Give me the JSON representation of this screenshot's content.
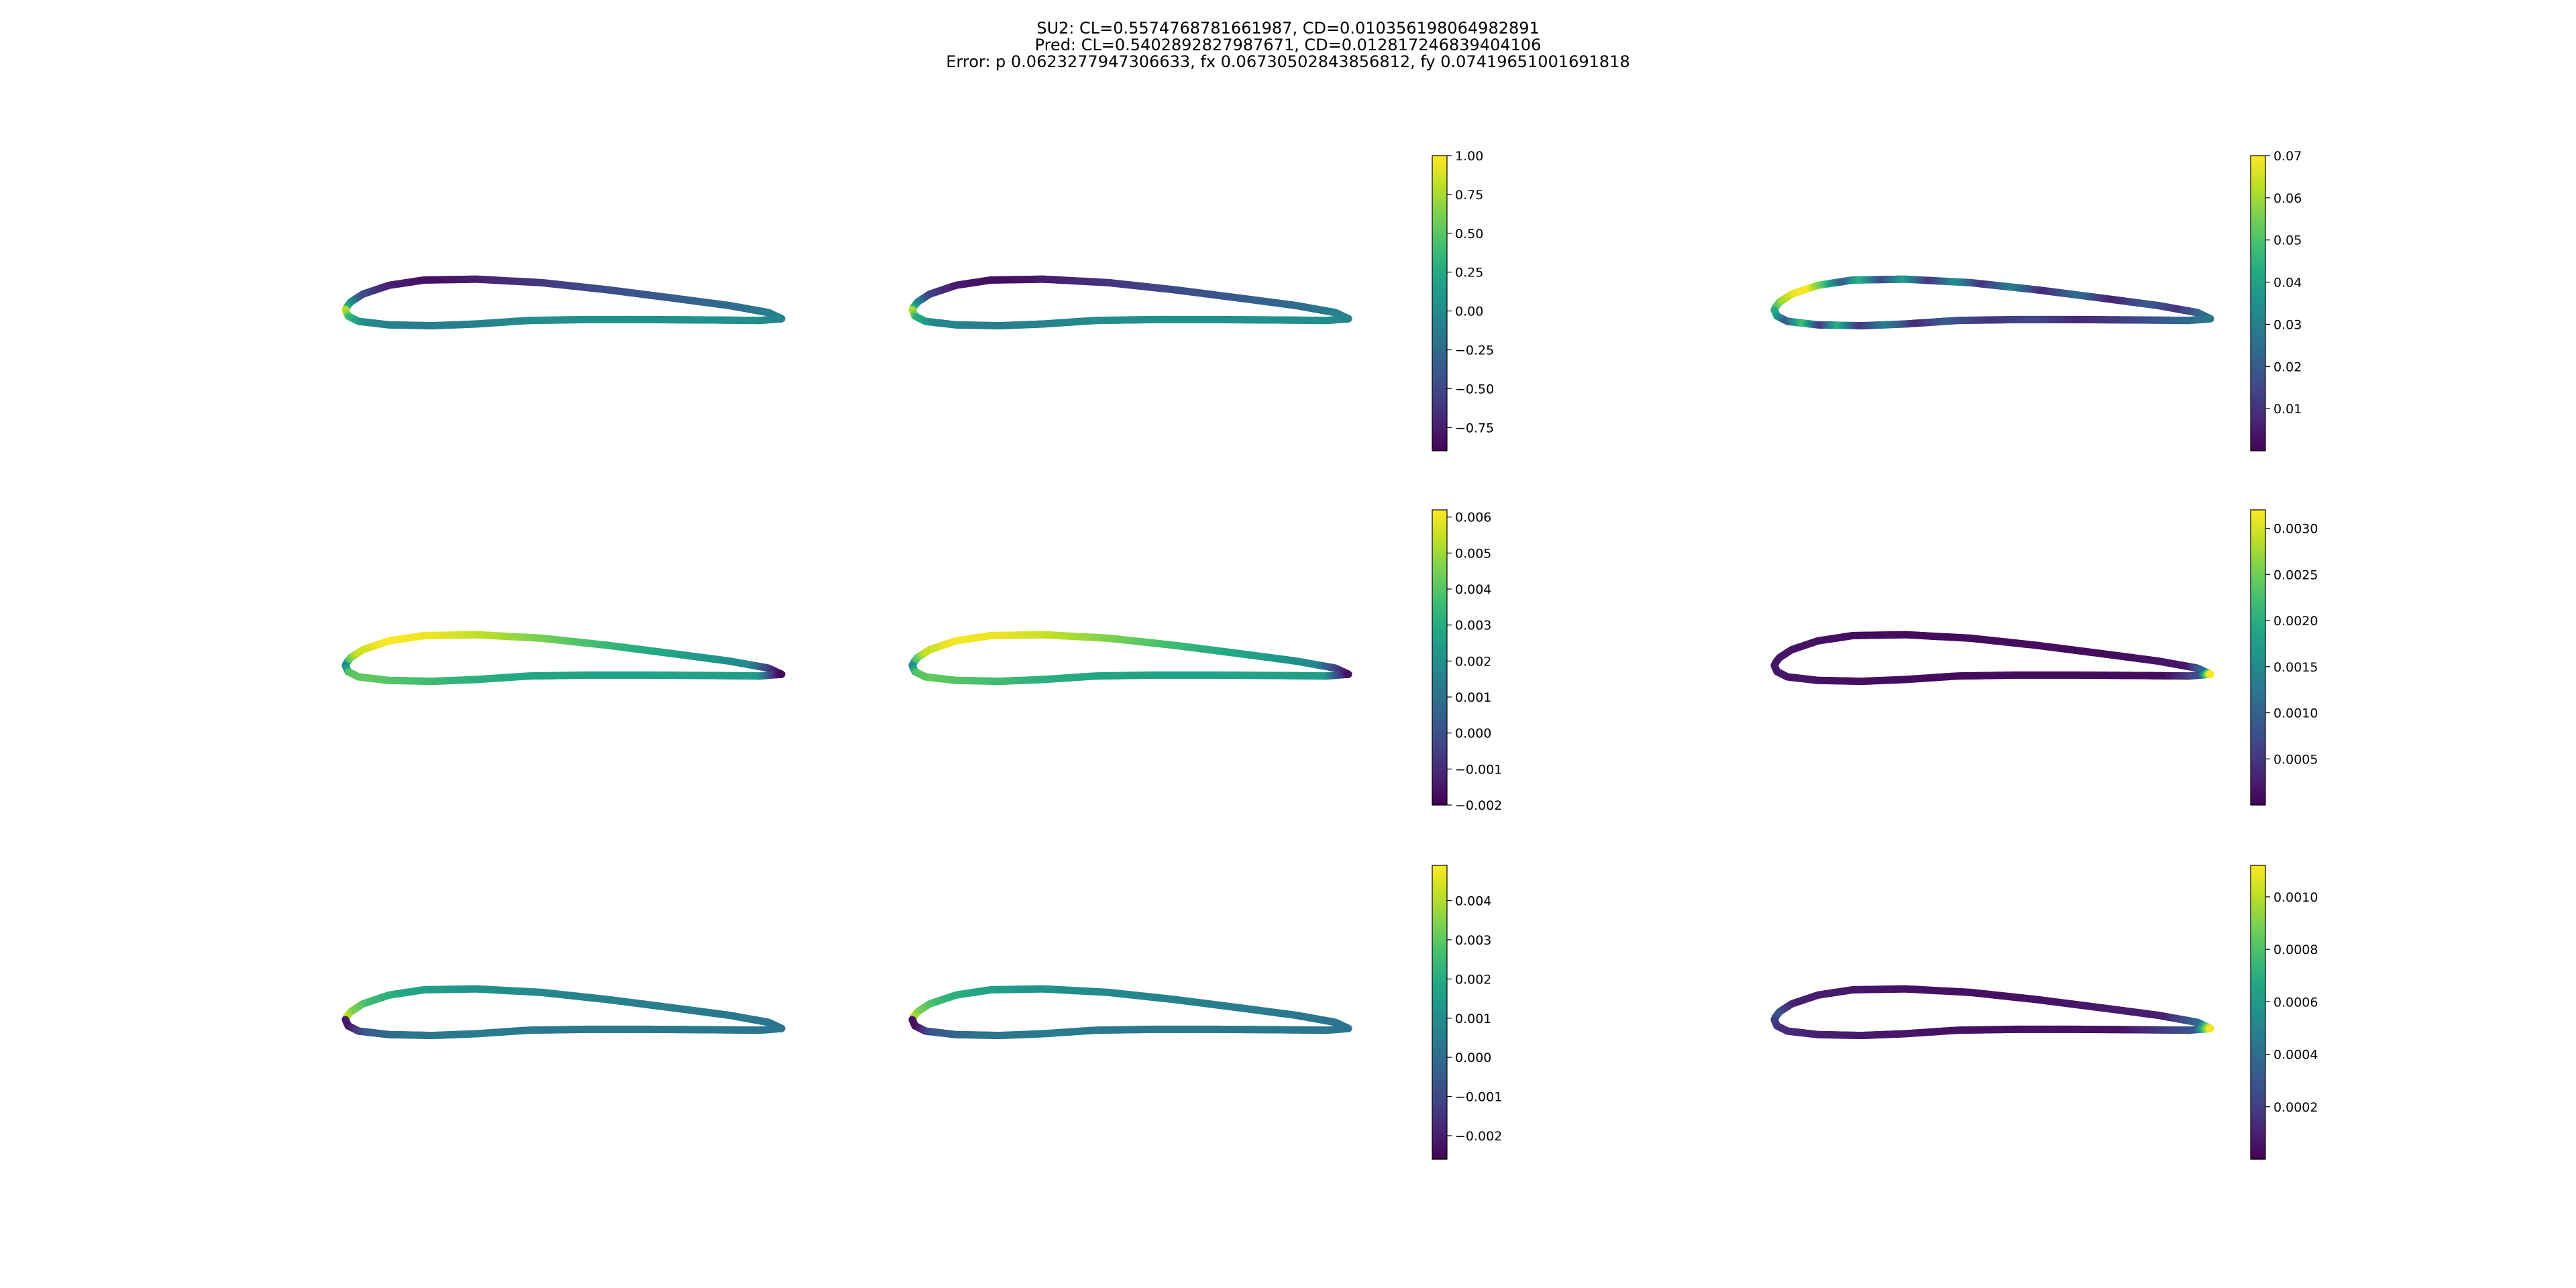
{
  "title": {
    "line1": "SU2: CL=0.5574768781661987, CD=0.010356198064982891",
    "line2": "Pred: CL=0.5402892827987671, CD=0.012817246839404106",
    "line3": "Error: p 0.0623277947306633, fx 0.06730502843856812, fy 0.07419651001691818"
  },
  "chart_data": {
    "type": "heatmap",
    "colormap": "viridis",
    "layout": "3x3 grid of airfoil surface plots; columns: SU2, prediction, absolute error",
    "airfoil_shape": {
      "upper": [
        [
          0.0,
          0.0
        ],
        [
          0.004,
          0.008
        ],
        [
          0.012,
          0.018
        ],
        [
          0.04,
          0.036
        ],
        [
          0.1,
          0.056
        ],
        [
          0.18,
          0.068
        ],
        [
          0.3,
          0.07
        ],
        [
          0.45,
          0.062
        ],
        [
          0.6,
          0.046
        ],
        [
          0.75,
          0.027
        ],
        [
          0.88,
          0.01
        ],
        [
          0.97,
          -0.006
        ],
        [
          1.0,
          -0.02
        ]
      ],
      "lower": [
        [
          0.0,
          0.0
        ],
        [
          0.006,
          -0.014
        ],
        [
          0.03,
          -0.026
        ],
        [
          0.1,
          -0.034
        ],
        [
          0.2,
          -0.036
        ],
        [
          0.3,
          -0.032
        ],
        [
          0.42,
          -0.024
        ],
        [
          0.55,
          -0.022
        ],
        [
          0.7,
          -0.022
        ],
        [
          0.85,
          -0.023
        ],
        [
          0.95,
          -0.024
        ],
        [
          1.0,
          -0.02
        ]
      ]
    },
    "rows": [
      {
        "quantity": "p",
        "shared_colorbar": {
          "range": [
            -0.9,
            1.0
          ],
          "ticks": [
            1.0,
            0.75,
            0.5,
            0.25,
            0.0,
            -0.25,
            -0.5,
            -0.75
          ],
          "tick_labels": [
            "1.00",
            "0.75",
            "0.50",
            "0.25",
            "0.00",
            "−0.25",
            "−0.50",
            "−0.75"
          ]
        },
        "error_colorbar": {
          "range": [
            0.0,
            0.07
          ],
          "ticks": [
            0.07,
            0.06,
            0.05,
            0.04,
            0.03,
            0.02,
            0.01
          ],
          "tick_labels": [
            "0.07",
            "0.06",
            "0.05",
            "0.04",
            "0.03",
            "0.02",
            "0.01"
          ]
        },
        "su2": {
          "upper": [
            [
              0.0,
              0.9
            ],
            [
              0.005,
              0.5
            ],
            [
              0.015,
              0.1
            ],
            [
              0.04,
              -0.45
            ],
            [
              0.1,
              -0.72
            ],
            [
              0.2,
              -0.82
            ],
            [
              0.35,
              -0.7
            ],
            [
              0.55,
              -0.5
            ],
            [
              0.75,
              -0.35
            ],
            [
              0.92,
              -0.2
            ],
            [
              1.0,
              -0.05
            ]
          ],
          "lower": [
            [
              0.0,
              0.9
            ],
            [
              0.01,
              0.4
            ],
            [
              0.05,
              0.0
            ],
            [
              0.15,
              -0.12
            ],
            [
              0.3,
              -0.08
            ],
            [
              0.45,
              0.03
            ],
            [
              0.6,
              0.05
            ],
            [
              0.8,
              0.05
            ],
            [
              0.95,
              0.03
            ],
            [
              1.0,
              -0.05
            ]
          ]
        },
        "pred": {
          "upper": [
            [
              0.0,
              0.85
            ],
            [
              0.005,
              0.45
            ],
            [
              0.015,
              0.05
            ],
            [
              0.04,
              -0.5
            ],
            [
              0.1,
              -0.75
            ],
            [
              0.2,
              -0.84
            ],
            [
              0.35,
              -0.72
            ],
            [
              0.55,
              -0.52
            ],
            [
              0.75,
              -0.36
            ],
            [
              0.92,
              -0.2
            ],
            [
              1.0,
              -0.05
            ]
          ],
          "lower": [
            [
              0.0,
              0.85
            ],
            [
              0.01,
              0.35
            ],
            [
              0.05,
              -0.02
            ],
            [
              0.15,
              -0.1
            ],
            [
              0.3,
              -0.07
            ],
            [
              0.45,
              0.03
            ],
            [
              0.6,
              0.05
            ],
            [
              0.8,
              0.05
            ],
            [
              0.95,
              0.03
            ],
            [
              1.0,
              -0.05
            ]
          ]
        },
        "error": {
          "upper": [
            [
              0.0,
              0.045
            ],
            [
              0.02,
              0.06
            ],
            [
              0.05,
              0.068
            ],
            [
              0.08,
              0.07
            ],
            [
              0.12,
              0.048
            ],
            [
              0.16,
              0.02
            ],
            [
              0.2,
              0.045
            ],
            [
              0.25,
              0.015
            ],
            [
              0.3,
              0.04
            ],
            [
              0.36,
              0.01
            ],
            [
              0.42,
              0.035
            ],
            [
              0.48,
              0.01
            ],
            [
              0.55,
              0.03
            ],
            [
              0.62,
              0.008
            ],
            [
              0.7,
              0.025
            ],
            [
              0.78,
              0.006
            ],
            [
              0.86,
              0.02
            ],
            [
              0.93,
              0.01
            ],
            [
              1.0,
              0.028
            ]
          ],
          "lower": [
            [
              0.0,
              0.045
            ],
            [
              0.03,
              0.02
            ],
            [
              0.07,
              0.05
            ],
            [
              0.11,
              0.01
            ],
            [
              0.15,
              0.045
            ],
            [
              0.2,
              0.01
            ],
            [
              0.26,
              0.03
            ],
            [
              0.33,
              0.008
            ],
            [
              0.4,
              0.02
            ],
            [
              0.5,
              0.01
            ],
            [
              0.6,
              0.015
            ],
            [
              0.7,
              0.008
            ],
            [
              0.8,
              0.012
            ],
            [
              0.9,
              0.02
            ],
            [
              1.0,
              0.028
            ]
          ]
        }
      },
      {
        "quantity": "fx",
        "shared_colorbar": {
          "range": [
            -0.002,
            0.0062
          ],
          "ticks": [
            0.006,
            0.005,
            0.004,
            0.003,
            0.002,
            0.001,
            0.0,
            -0.001,
            -0.002
          ],
          "tick_labels": [
            "0.006",
            "0.005",
            "0.004",
            "0.003",
            "0.002",
            "0.001",
            "0.000",
            "−0.001",
            "−0.002"
          ]
        },
        "error_colorbar": {
          "range": [
            0.0,
            0.0032
          ],
          "ticks": [
            0.003,
            0.0025,
            0.002,
            0.0015,
            0.001,
            0.0005
          ],
          "tick_labels": [
            "0.0030",
            "0.0025",
            "0.0020",
            "0.0015",
            "0.0010",
            "0.0005"
          ]
        },
        "su2": {
          "upper": [
            [
              0.0,
              0.0015
            ],
            [
              0.01,
              0.004
            ],
            [
              0.03,
              0.0055
            ],
            [
              0.1,
              0.0062
            ],
            [
              0.2,
              0.006
            ],
            [
              0.35,
              0.0052
            ],
            [
              0.5,
              0.0042
            ],
            [
              0.65,
              0.0032
            ],
            [
              0.8,
              0.0025
            ],
            [
              0.93,
              0.0018
            ],
            [
              1.0,
              -0.0018
            ]
          ],
          "lower": [
            [
              0.0,
              0.0015
            ],
            [
              0.01,
              0.004
            ],
            [
              0.05,
              0.0042
            ],
            [
              0.15,
              0.0038
            ],
            [
              0.3,
              0.0032
            ],
            [
              0.45,
              0.0028
            ],
            [
              0.6,
              0.0027
            ],
            [
              0.8,
              0.0027
            ],
            [
              0.95,
              0.0025
            ],
            [
              1.0,
              -0.0018
            ]
          ]
        },
        "pred": {
          "upper": [
            [
              0.0,
              0.0014
            ],
            [
              0.01,
              0.0038
            ],
            [
              0.03,
              0.0054
            ],
            [
              0.1,
              0.0061
            ],
            [
              0.2,
              0.006
            ],
            [
              0.35,
              0.0053
            ],
            [
              0.5,
              0.0043
            ],
            [
              0.65,
              0.0033
            ],
            [
              0.8,
              0.0026
            ],
            [
              0.93,
              0.0018
            ],
            [
              1.0,
              -0.0016
            ]
          ],
          "lower": [
            [
              0.0,
              0.0014
            ],
            [
              0.01,
              0.0039
            ],
            [
              0.05,
              0.0042
            ],
            [
              0.15,
              0.0038
            ],
            [
              0.3,
              0.0032
            ],
            [
              0.45,
              0.0028
            ],
            [
              0.6,
              0.0027
            ],
            [
              0.8,
              0.0027
            ],
            [
              0.95,
              0.0025
            ],
            [
              1.0,
              -0.0016
            ]
          ]
        },
        "error": {
          "upper": [
            [
              0.0,
              0.0002
            ],
            [
              0.2,
              0.0001
            ],
            [
              0.5,
              0.0001
            ],
            [
              0.8,
              0.0001
            ],
            [
              0.95,
              0.0002
            ],
            [
              0.99,
              0.0012
            ],
            [
              1.0,
              0.0032
            ]
          ],
          "lower": [
            [
              0.0,
              0.0002
            ],
            [
              0.3,
              0.0001
            ],
            [
              0.6,
              0.0001
            ],
            [
              0.9,
              0.0001
            ],
            [
              0.98,
              0.0008
            ],
            [
              1.0,
              0.0032
            ]
          ]
        }
      },
      {
        "quantity": "fy",
        "shared_colorbar": {
          "range": [
            -0.0026,
            0.0049
          ],
          "ticks": [
            0.004,
            0.003,
            0.002,
            0.001,
            0.0,
            -0.001,
            -0.002
          ],
          "tick_labels": [
            "0.004",
            "0.003",
            "0.002",
            "0.001",
            "0.000",
            "−0.001",
            "−0.002"
          ]
        },
        "error_colorbar": {
          "range": [
            0.0,
            0.00112
          ],
          "ticks": [
            0.001,
            0.0008,
            0.0006,
            0.0004,
            0.0002
          ],
          "tick_labels": [
            "0.0010",
            "0.0008",
            "0.0006",
            "0.0004",
            "0.0002"
          ]
        },
        "su2": {
          "upper": [
            [
              0.0,
              -0.002
            ],
            [
              0.005,
              0.0045
            ],
            [
              0.02,
              0.0035
            ],
            [
              0.06,
              0.0025
            ],
            [
              0.15,
              0.0018
            ],
            [
              0.3,
              0.0012
            ],
            [
              0.5,
              0.0008
            ],
            [
              0.7,
              0.0006
            ],
            [
              0.9,
              0.0004
            ],
            [
              1.0,
              0.0003
            ]
          ],
          "lower": [
            [
              0.0,
              -0.002
            ],
            [
              0.01,
              -0.0022
            ],
            [
              0.05,
              -0.0005
            ],
            [
              0.15,
              0.0003
            ],
            [
              0.3,
              0.0005
            ],
            [
              0.5,
              0.0004
            ],
            [
              0.7,
              0.0004
            ],
            [
              0.9,
              0.0004
            ],
            [
              1.0,
              0.0003
            ]
          ]
        },
        "pred": {
          "upper": [
            [
              0.0,
              -0.0022
            ],
            [
              0.005,
              0.0042
            ],
            [
              0.02,
              0.0034
            ],
            [
              0.06,
              0.0025
            ],
            [
              0.15,
              0.0018
            ],
            [
              0.3,
              0.0012
            ],
            [
              0.5,
              0.0008
            ],
            [
              0.7,
              0.0006
            ],
            [
              0.9,
              0.0004
            ],
            [
              1.0,
              0.0003
            ]
          ],
          "lower": [
            [
              0.0,
              -0.0022
            ],
            [
              0.01,
              -0.0024
            ],
            [
              0.05,
              -0.0006
            ],
            [
              0.15,
              0.0002
            ],
            [
              0.3,
              0.0005
            ],
            [
              0.5,
              0.0004
            ],
            [
              0.7,
              0.0004
            ],
            [
              0.9,
              0.0004
            ],
            [
              1.0,
              0.0003
            ]
          ]
        },
        "error": {
          "upper": [
            [
              0.0,
              0.0002
            ],
            [
              0.01,
              0.0003
            ],
            [
              0.05,
              0.0001
            ],
            [
              0.3,
              5e-05
            ],
            [
              0.6,
              5e-05
            ],
            [
              0.9,
              0.0001
            ],
            [
              0.98,
              0.0004
            ],
            [
              1.0,
              0.0011
            ]
          ],
          "lower": [
            [
              0.0,
              0.0002
            ],
            [
              0.02,
              0.00015
            ],
            [
              0.1,
              0.0001
            ],
            [
              0.4,
              5e-05
            ],
            [
              0.8,
              5e-05
            ],
            [
              0.97,
              0.0003
            ],
            [
              1.0,
              0.0011
            ]
          ]
        }
      }
    ]
  }
}
